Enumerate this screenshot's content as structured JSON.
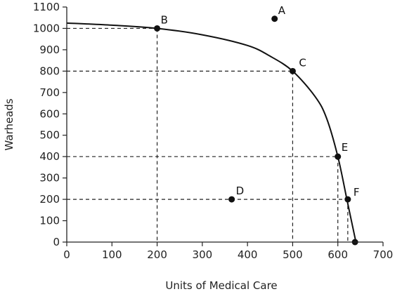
{
  "chart_data": {
    "type": "line",
    "title": "",
    "xlabel": "Units of Medical Care",
    "ylabel": "Warheads",
    "xlim": [
      0,
      700
    ],
    "ylim": [
      0,
      1100
    ],
    "x_ticks": [
      0,
      100,
      200,
      300,
      400,
      500,
      600,
      700
    ],
    "y_ticks": [
      0,
      100,
      200,
      300,
      400,
      500,
      600,
      700,
      800,
      900,
      1000,
      1100
    ],
    "grid": false,
    "legend": "none",
    "curve": {
      "x": [
        0,
        100,
        200,
        300,
        400,
        450,
        500,
        550,
        575,
        600,
        620,
        630,
        640
      ],
      "y": [
        1025,
        1015,
        1000,
        970,
        920,
        870,
        800,
        680,
        580,
        400,
        200,
        100,
        0
      ]
    },
    "points": [
      {
        "label": "A",
        "x": 460,
        "y": 1045
      },
      {
        "label": "B",
        "x": 200,
        "y": 1000
      },
      {
        "label": "C",
        "x": 500,
        "y": 800
      },
      {
        "label": "D",
        "x": 365,
        "y": 200
      },
      {
        "label": "E",
        "x": 600,
        "y": 400
      },
      {
        "label": "F",
        "x": 622,
        "y": 200
      },
      {
        "label": "",
        "x": 638,
        "y": 0
      }
    ],
    "guide_points": [
      "B",
      "C",
      "E",
      "F"
    ],
    "colors": {
      "line": "#111111",
      "axis": "#222222",
      "text": "#222222"
    }
  }
}
